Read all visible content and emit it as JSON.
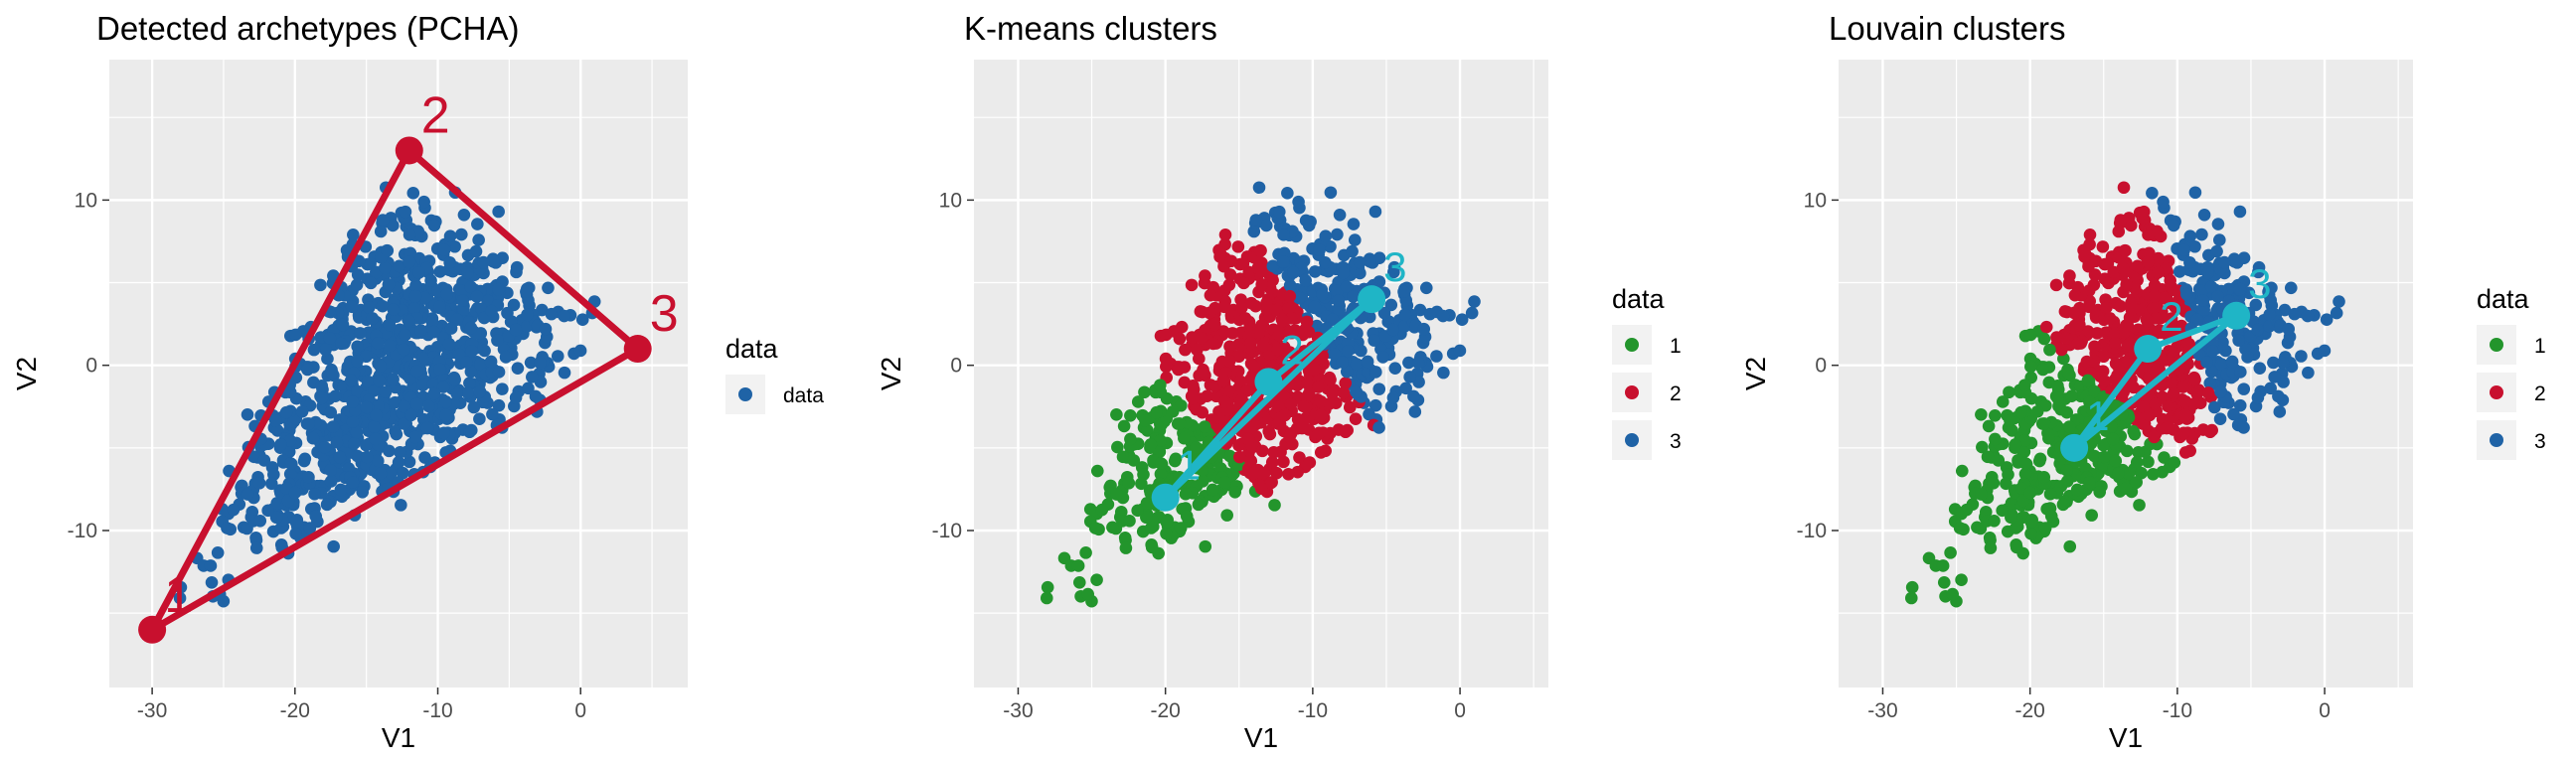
{
  "chart_data": [
    {
      "type": "scatter",
      "title": "Detected archetypes (PCHA)",
      "xlabel": "V1",
      "ylabel": "V2",
      "xlim": [
        -33,
        7.5
      ],
      "ylim": [
        -19.5,
        18.5
      ],
      "xticks": [
        -30,
        -20,
        -10,
        0
      ],
      "yticks": [
        -10,
        0,
        10
      ],
      "legend": {
        "title": "data",
        "position": "right",
        "entries": [
          {
            "label": "data",
            "color": "#1f63a6"
          }
        ]
      },
      "archetypes": {
        "color": "#c8102e",
        "points": [
          {
            "label": "1",
            "x": -30,
            "y": -16
          },
          {
            "label": "2",
            "x": -12,
            "y": 13
          },
          {
            "label": "3",
            "x": 4,
            "y": 1
          }
        ]
      },
      "grid": true
    },
    {
      "type": "scatter",
      "title": "K-means clusters",
      "xlabel": "V1",
      "ylabel": "V2",
      "xlim": [
        -33,
        6
      ],
      "ylim": [
        -19.5,
        18.5
      ],
      "xticks": [
        -30,
        -20,
        -10,
        0
      ],
      "yticks": [
        -10,
        0,
        10
      ],
      "legend": {
        "title": "data",
        "position": "right",
        "entries": [
          {
            "label": "1",
            "color": "#23952c"
          },
          {
            "label": "2",
            "color": "#c8102e"
          },
          {
            "label": "3",
            "color": "#1f63a6"
          }
        ]
      },
      "centroids": {
        "color": "#1fb5c6",
        "points": [
          {
            "label": "1",
            "x": -20,
            "y": -8
          },
          {
            "label": "2",
            "x": -13,
            "y": -1
          },
          {
            "label": "3",
            "x": -6,
            "y": 4
          }
        ]
      },
      "grid": true
    },
    {
      "type": "scatter",
      "title": "Louvain clusters",
      "xlabel": "V1",
      "ylabel": "V2",
      "xlim": [
        -33,
        6
      ],
      "ylim": [
        -19.5,
        18.5
      ],
      "xticks": [
        -30,
        -20,
        -10,
        0
      ],
      "yticks": [
        -10,
        0,
        10
      ],
      "legend": {
        "title": "data",
        "position": "right",
        "entries": [
          {
            "label": "1",
            "color": "#23952c"
          },
          {
            "label": "2",
            "color": "#c8102e"
          },
          {
            "label": "3",
            "color": "#1f63a6"
          }
        ]
      },
      "centroids": {
        "color": "#1fb5c6",
        "points": [
          {
            "label": "1",
            "x": -17,
            "y": -5
          },
          {
            "label": "2",
            "x": -12,
            "y": 1
          },
          {
            "label": "3",
            "x": -6,
            "y": 3
          }
        ]
      },
      "grid": true
    }
  ]
}
